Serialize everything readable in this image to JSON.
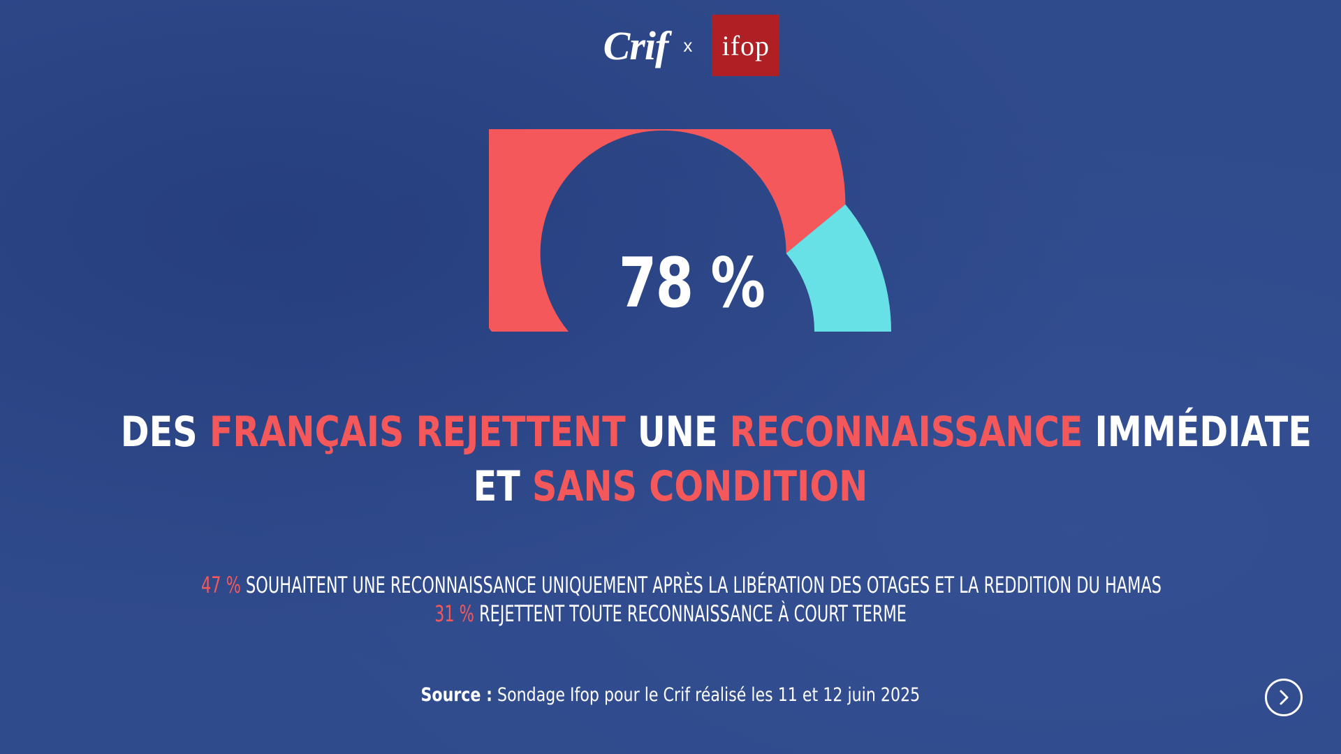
{
  "header": {
    "logo_left": "Crif",
    "separator": "x",
    "logo_right": "ifop",
    "logo_right_color": "#b01f24"
  },
  "colors": {
    "background": "#304b8c",
    "accent_red": "#f4585a",
    "accent_cyan": "#67e1e6",
    "text": "#ffffff"
  },
  "chart_data": {
    "type": "gauge",
    "value_label": "78 %",
    "segments": [
      {
        "value": 78,
        "color": "#f4585a"
      },
      {
        "value": 22,
        "color": "#67e1e6"
      }
    ],
    "range": [
      0,
      100
    ]
  },
  "headline": {
    "line1": [
      {
        "text": "Des ",
        "color": "white"
      },
      {
        "text": "Français rejettent",
        "color": "red"
      },
      {
        "text": " une ",
        "color": "white"
      },
      {
        "text": "reconnaissance",
        "color": "red"
      },
      {
        "text": " immédiate",
        "color": "white"
      }
    ],
    "line2": [
      {
        "text": "et ",
        "color": "white"
      },
      {
        "text": "sans condition",
        "color": "red"
      }
    ]
  },
  "substats": {
    "row1_value": "47 %",
    "row1_text": " souhaitent une reconnaissance uniquement après la libération des otages et la reddition du Hamas",
    "row2_value": "31 %",
    "row2_text": " rejettent toute reconnaissance à court terme"
  },
  "source": {
    "label": "Source :",
    "text": " Sondage Ifop pour le Crif réalisé les 11 et 12 juin 2025"
  },
  "navigation": {
    "next_icon": "chevron-right-icon"
  }
}
